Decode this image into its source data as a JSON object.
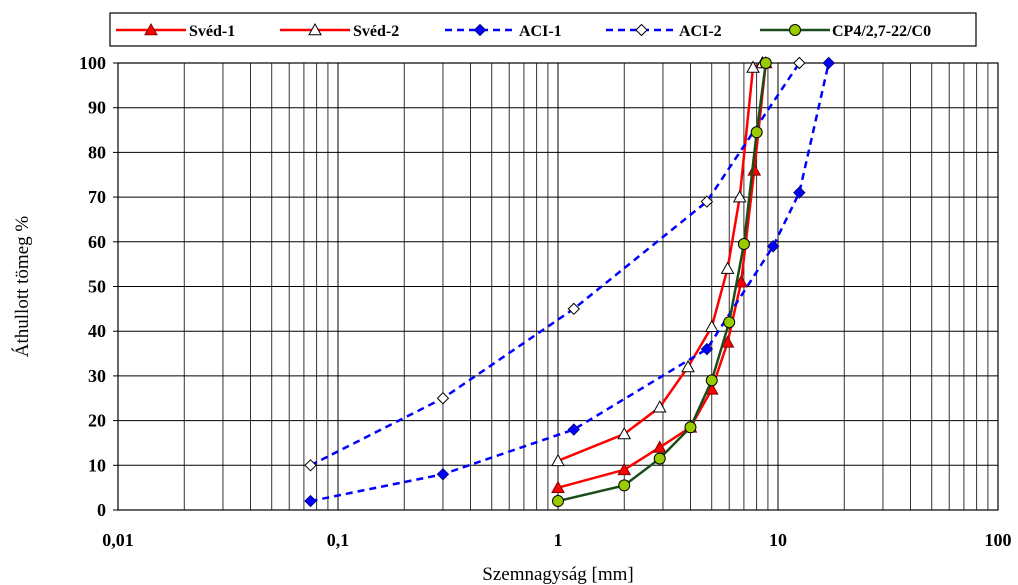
{
  "chart_data": {
    "type": "line",
    "xlabel": "Szemnagyság [mm]",
    "ylabel": "Áthullott tömeg %",
    "x_scale": "log",
    "xlim": [
      0.01,
      100
    ],
    "ylim": [
      0,
      100
    ],
    "x_tick_labels": [
      "0,01",
      "0,1",
      "1",
      "10",
      "100"
    ],
    "y_tick_labels": [
      "0",
      "10",
      "20",
      "30",
      "40",
      "50",
      "60",
      "70",
      "80",
      "90",
      "100"
    ],
    "grid": true,
    "legend_position": "top",
    "series": [
      {
        "name": "Svéd-1",
        "color": "#ff0000",
        "line": "solid",
        "marker": "filled-triangle",
        "marker_color": "#ff0000",
        "points": [
          [
            1,
            5
          ],
          [
            2,
            9
          ],
          [
            2.9,
            14
          ],
          [
            4,
            18.5
          ],
          [
            5,
            27
          ],
          [
            5.9,
            37.5
          ],
          [
            6.8,
            51
          ],
          [
            7.8,
            76
          ],
          [
            8.8,
            100
          ]
        ]
      },
      {
        "name": "Svéd-2",
        "color": "#ff0000",
        "line": "solid",
        "marker": "open-triangle",
        "marker_color": "#ffffff",
        "points": [
          [
            1,
            11
          ],
          [
            2,
            17
          ],
          [
            2.9,
            23
          ],
          [
            3.9,
            32
          ],
          [
            5,
            41
          ],
          [
            5.9,
            54
          ],
          [
            6.7,
            70
          ],
          [
            7.7,
            99
          ],
          [
            8.5,
            100
          ]
        ]
      },
      {
        "name": "ACI-1",
        "color": "#0000ff",
        "line": "dashed",
        "marker": "filled-diamond",
        "marker_color": "#0000ff",
        "points": [
          [
            0.075,
            2
          ],
          [
            0.3,
            8
          ],
          [
            1.18,
            18
          ],
          [
            4.75,
            36
          ],
          [
            9.5,
            59
          ],
          [
            12.5,
            71
          ],
          [
            17,
            100
          ]
        ]
      },
      {
        "name": "ACI-2",
        "color": "#0000ff",
        "line": "dashed",
        "marker": "open-diamond",
        "marker_color": "#ffffff",
        "points": [
          [
            0.075,
            10
          ],
          [
            0.3,
            25
          ],
          [
            1.18,
            45
          ],
          [
            4.75,
            69
          ],
          [
            12.5,
            100
          ]
        ]
      },
      {
        "name": "CP4/2,7-22/C0",
        "color": "#1a4d1a",
        "line": "solid",
        "marker": "circle",
        "marker_color": "#99cc00",
        "points": [
          [
            1,
            2
          ],
          [
            2,
            5.5
          ],
          [
            2.9,
            11.5
          ],
          [
            4,
            18.5
          ],
          [
            5,
            29
          ],
          [
            6,
            42
          ],
          [
            7,
            59.5
          ],
          [
            8,
            84.5
          ],
          [
            8.8,
            100
          ]
        ]
      }
    ]
  }
}
